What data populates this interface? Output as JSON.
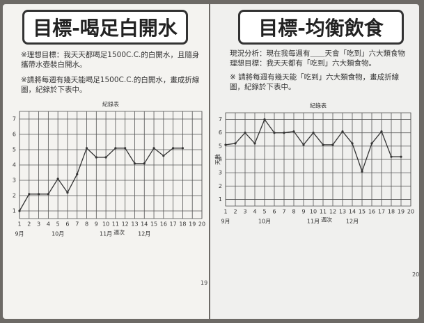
{
  "pages": [
    {
      "heading": "目標-喝足白開水",
      "lines": [
        "※理想目標：我天天都喝足1500C.C.的白開水，且隨身攜帶水壺裝白開水。",
        "※請將每週有幾天能喝足1500C.C.的白開水，畫成折線圖，紀錄於下表中。"
      ],
      "page_number": "19"
    },
    {
      "heading": "目標-均衡飲食",
      "lines": [
        "現況分析：現在我每週有＿＿天會「吃到」六大類食物",
        "理想目標：我天天都有「吃到」六大類食物。",
        "※ 請將每週有幾天能「吃到」六大類食物，畫成折線圖，紀錄於下表中。"
      ],
      "page_number": "20"
    }
  ],
  "chart_data": [
    {
      "type": "line",
      "title": "紀錄表",
      "x_label": "週次",
      "x": [
        1,
        2,
        3,
        4,
        5,
        6,
        7,
        8,
        9,
        10,
        11,
        12,
        13,
        14,
        15,
        16,
        17,
        18
      ],
      "series": [
        {
          "color": "#333333",
          "values": [
            1,
            2.1,
            2.1,
            2.1,
            3.1,
            2.2,
            3.4,
            5.1,
            4.5,
            4.5,
            5.1,
            5.1,
            4.1,
            4.1,
            5.1,
            4.6,
            5.1,
            5.1
          ]
        }
      ],
      "xlim": [
        1,
        20
      ],
      "xticks": [
        1,
        2,
        3,
        4,
        5,
        6,
        7,
        8,
        9,
        10,
        11,
        12,
        13,
        14,
        15,
        16,
        17,
        18,
        19,
        20
      ],
      "ylim": [
        0.5,
        7.5
      ],
      "yticks": [
        1,
        2,
        3,
        4,
        5,
        6,
        7
      ],
      "grid": true,
      "annotations": [
        {
          "x": 1,
          "label": "9月"
        },
        {
          "x": 5,
          "label": "10月"
        },
        {
          "x": 10,
          "label": "11月"
        },
        {
          "x": 14,
          "label": "12月"
        }
      ]
    },
    {
      "type": "line",
      "title": "紀錄表",
      "x_label": "週次",
      "y_label": "天數",
      "x": [
        1,
        2,
        3,
        4,
        5,
        6,
        7,
        8,
        9,
        10,
        11,
        12,
        13,
        14,
        15,
        16,
        17,
        18,
        19
      ],
      "series": [
        {
          "color": "#333333",
          "values": [
            5.1,
            5.2,
            6,
            5.2,
            7,
            6,
            6,
            6.1,
            5.1,
            6,
            5.1,
            5.1,
            6.1,
            5.2,
            3.1,
            5.2,
            6.1,
            4.2,
            4.2
          ]
        }
      ],
      "xlim": [
        1,
        20
      ],
      "xticks": [
        1,
        2,
        3,
        4,
        5,
        6,
        7,
        8,
        9,
        10,
        11,
        12,
        13,
        14,
        15,
        16,
        17,
        18,
        19,
        20
      ],
      "ylim": [
        0.5,
        7.5
      ],
      "yticks": [
        1,
        2,
        3,
        4,
        5,
        6,
        7
      ],
      "grid": true,
      "annotations": [
        {
          "x": 1,
          "label": "9月"
        },
        {
          "x": 5,
          "label": "10月"
        },
        {
          "x": 10,
          "label": "11月"
        },
        {
          "x": 14,
          "label": "12月"
        }
      ]
    }
  ]
}
